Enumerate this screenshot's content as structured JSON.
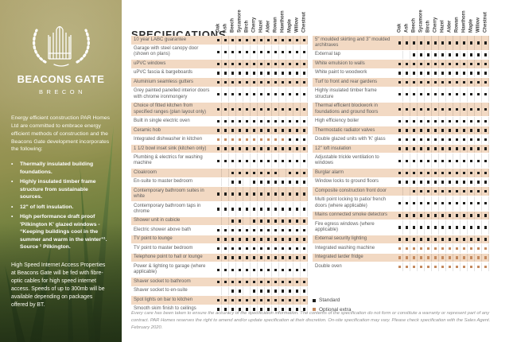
{
  "title": "SPECIFICATIONS",
  "sidebar": {
    "logo_title": "BEACONS GATE",
    "logo_subtitle": "BRECON",
    "intro": "Energy efficient construction PAR Homes Ltd are committed to embrace energy efficient methods of construction and the Beacons Gate development incorporates the following:",
    "bullets": [
      "Thermally insulated building foundations.",
      "Highly insulated timber frame structure from sustainable sources.",
      "12\" of loft insulation.",
      "High performance draft proof 'Pilkington K' glazed windows - “Keeping buildings cool in the summer and warm in the winter”¹. Source ¹ Pilkington."
    ],
    "internet": "High Speed Internet Access Properties at Beacons Gate will be fed with fibre-optic cables for high speed internet access. Speeds of up to 300mb will be available depending on packages offered by BT."
  },
  "house_types": [
    "Oak",
    "Ash",
    "Beech",
    "Sycamore",
    "Birch",
    "Cherry",
    "Hazel",
    "Alder",
    "Rowan",
    "Hawthorn",
    "Maple",
    "Willow",
    "Chestnut"
  ],
  "legend": {
    "standard": "Standard",
    "optional": "Optional extra"
  },
  "colors": {
    "row_highlight": "#f2d9c3",
    "standard_mark": "#1d1d1b",
    "optional_mark": "#c48a5f"
  },
  "tables": [
    {
      "rows": [
        {
          "label": "10 year LABC guarantee",
          "marks": "sssssssssssss"
        },
        {
          "label": "Garage with steel canopy door (shown on plans)",
          "marks": "sssssssssssss"
        },
        {
          "label": "uPVC windows",
          "marks": "sssssssssssss"
        },
        {
          "label": "uPVC fascia & bargeboards",
          "marks": "sssssssssssss"
        },
        {
          "label": "Aluminium seamless gutters",
          "marks": "sssssssssssss"
        },
        {
          "label": "Grey painted panelled interior doors with chrome ironmongery",
          "marks": "sssssssssssss"
        },
        {
          "label": "Choice of fitted kitchen from specified ranges (plan layout only)",
          "marks": "sssssssssssss"
        },
        {
          "label": "Built in single electric oven",
          "marks": "sssssssssssss"
        },
        {
          "label": "Ceramic hob",
          "marks": "sssssssssssss"
        },
        {
          "label": "Integrated dishwasher in kitchen",
          "marks": "oooooooooosss"
        },
        {
          "label": "1 1/2 bowl inset sink (kitchen only)",
          "marks": "sssssssssssss"
        },
        {
          "label": "Plumbing & electrics for washing machine",
          "marks": "sssssssssssss"
        },
        {
          "label": "Cloakroom",
          "marks": "..sssssss.sss"
        },
        {
          "label": "En-suite to master bedroom",
          "marks": "..ss.ssssssss"
        },
        {
          "label": "Contemporary bathroom suites in white",
          "marks": "sssssssssssss"
        },
        {
          "label": "Contemporary bathroom taps in chrome",
          "marks": "sssssssssssss"
        },
        {
          "label": "Shower unit in cubicle",
          "marks": "..ss.ssssssss"
        },
        {
          "label": "Electric shower above bath",
          "marks": "sssssssssssss"
        },
        {
          "label": "TV point to lounge",
          "marks": "sssssssssssss"
        },
        {
          "label": "TV point to master bedroom",
          "marks": "sssssssssssss"
        },
        {
          "label": "Telephone point to hall or lounge",
          "marks": "sssssssssssss"
        },
        {
          "label": "Power & lighting to garage (where applicable)",
          "marks": "sssssssssssss"
        },
        {
          "label": "Shaver socket to bathroom",
          "marks": "sssssssssssss"
        },
        {
          "label": "Shaver socket to en-suite",
          "marks": "..ss.ssssssss"
        },
        {
          "label": "Spot lights on bar to kitchen",
          "marks": "sssssssssssss"
        },
        {
          "label": "Smooth skim finish to ceilings",
          "marks": "sssssssssssss"
        }
      ]
    },
    {
      "rows": [
        {
          "label": "5\" moulded skirting and 3\" moulded architraves",
          "marks": "sssssssssssss"
        },
        {
          "label": "External tap",
          "marks": "..sssssssssss"
        },
        {
          "label": "White emulsion to walls",
          "marks": "sssssssssssss"
        },
        {
          "label": "White paint to woodwork",
          "marks": "sssssssssssss"
        },
        {
          "label": "Turf to front and rear gardens",
          "marks": "sssssssssssss"
        },
        {
          "label": "Highly insulated timber frame structure",
          "marks": "sssssssssssss"
        },
        {
          "label": "Thermal efficient blockwork in foundations and ground floors",
          "marks": "sssssssssssss"
        },
        {
          "label": "High efficiency boiler",
          "marks": "sssssssssssss"
        },
        {
          "label": "Thermostatic radiator valves",
          "marks": "sssssssssssss"
        },
        {
          "label": "Double glazed units with 'K' glass",
          "marks": "sssssssssssss"
        },
        {
          "label": "12\" loft insulation",
          "marks": "sssssssssssss"
        },
        {
          "label": "Adjustable trickle ventilation to windows",
          "marks": "sssssssssssss"
        },
        {
          "label": "Burglar alarm",
          "marks": "sssssssssssss"
        },
        {
          "label": "Window locks to ground floors",
          "marks": "sssssssssssss"
        },
        {
          "label": "Composite construction front door",
          "marks": "..sssssssssss"
        },
        {
          "label": "Multi point locking to patio/ french doors (where applicable)",
          "marks": "sssssssssssss"
        },
        {
          "label": "Mains connected smoke detectors",
          "marks": "sssssssssssss"
        },
        {
          "label": "Fire egress windows (where applicable)",
          "marks": "sssssssssssss"
        },
        {
          "label": "External security lighting",
          "marks": "sssssssssssss"
        },
        {
          "label": "Integrated washing machine",
          "marks": "ooooooooooooo"
        },
        {
          "label": "Integrated larder fridge",
          "marks": "ooooooooooooo"
        },
        {
          "label": "Double oven",
          "marks": "ooooooooooooo"
        }
      ]
    }
  ],
  "footer": "Every care has been taken to ensure the accuracy of the specification information. The contents of the specification do not form or constitute a warranty or represent part of any contract. PAR Homes reserves the right to amend and/or update specification at their discretion. On-site specification may vary. Please check specification with the Sales Agent. February 2020."
}
